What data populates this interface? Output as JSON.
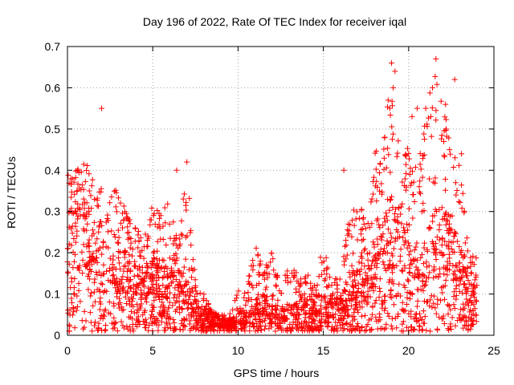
{
  "chart_data": {
    "type": "scatter",
    "title": "Day 196 of 2022, Rate Of TEC Index for receiver iqal",
    "xlabel": "GPS time / hours",
    "ylabel": "ROTI / TECUs",
    "xlim": [
      0,
      25
    ],
    "ylim": [
      0,
      0.7
    ],
    "x_ticks": [
      0,
      5,
      10,
      15,
      20,
      25
    ],
    "y_ticks": [
      0,
      0.1,
      0.2,
      0.3,
      0.4,
      0.5,
      0.6,
      0.7
    ],
    "x_tick_labels": [
      "0",
      "5",
      "10",
      "15",
      "20",
      "25"
    ],
    "y_tick_labels": [
      "0",
      "0.1",
      "0.2",
      "0.3",
      "0.4",
      "0.5",
      "0.6",
      "0.7"
    ],
    "grid": true,
    "marker": "+",
    "series_color": "#ff0000",
    "envelope": {
      "x": [
        0,
        0.5,
        1,
        1.5,
        2,
        2.5,
        3,
        3.5,
        4,
        4.5,
        5,
        5.5,
        6,
        6.5,
        7,
        7.5,
        8,
        8.5,
        9,
        9.5,
        10,
        10.5,
        11,
        11.5,
        12,
        12.5,
        13,
        13.5,
        14,
        14.5,
        15,
        15.5,
        16,
        16.5,
        17,
        17.5,
        18,
        18.5,
        19,
        19.5,
        20,
        20.5,
        21,
        21.5,
        22,
        22.5,
        23,
        23.5,
        24
      ],
      "upper": [
        0.42,
        0.4,
        0.43,
        0.38,
        0.36,
        0.33,
        0.38,
        0.3,
        0.27,
        0.24,
        0.32,
        0.3,
        0.33,
        0.22,
        0.42,
        0.14,
        0.1,
        0.06,
        0.05,
        0.05,
        0.12,
        0.11,
        0.23,
        0.16,
        0.21,
        0.12,
        0.17,
        0.15,
        0.16,
        0.13,
        0.22,
        0.13,
        0.15,
        0.28,
        0.35,
        0.26,
        0.48,
        0.45,
        0.66,
        0.48,
        0.45,
        0.4,
        0.55,
        0.67,
        0.62,
        0.45,
        0.43,
        0.2,
        0.19
      ],
      "median": [
        0.15,
        0.16,
        0.17,
        0.15,
        0.14,
        0.13,
        0.12,
        0.1,
        0.09,
        0.08,
        0.1,
        0.09,
        0.1,
        0.08,
        0.07,
        0.05,
        0.035,
        0.025,
        0.02,
        0.02,
        0.03,
        0.04,
        0.05,
        0.05,
        0.04,
        0.035,
        0.04,
        0.05,
        0.05,
        0.05,
        0.05,
        0.05,
        0.05,
        0.07,
        0.09,
        0.1,
        0.12,
        0.14,
        0.17,
        0.16,
        0.13,
        0.1,
        0.12,
        0.16,
        0.17,
        0.14,
        0.11,
        0.08,
        0.07
      ]
    },
    "outliers": [
      [
        2.0,
        0.55
      ],
      [
        19.0,
        0.66
      ],
      [
        19.2,
        0.64
      ],
      [
        21.6,
        0.67
      ],
      [
        22.7,
        0.62
      ],
      [
        18.8,
        0.57
      ],
      [
        18.9,
        0.55
      ],
      [
        21.0,
        0.55
      ],
      [
        21.4,
        0.6
      ],
      [
        21.3,
        0.53
      ],
      [
        22.2,
        0.5
      ],
      [
        6.4,
        0.4
      ],
      [
        7.0,
        0.42
      ],
      [
        16.2,
        0.4
      ],
      [
        20.5,
        0.55
      ],
      [
        19.1,
        0.6
      ],
      [
        20.2,
        0.53
      ],
      [
        18.6,
        0.48
      ],
      [
        23.1,
        0.44
      ],
      [
        22.4,
        0.45
      ]
    ],
    "n_points": 2600
  }
}
